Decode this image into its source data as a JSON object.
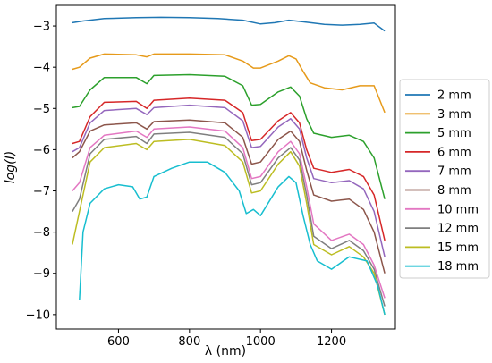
{
  "chart_data": {
    "type": "line",
    "title": "",
    "xlabel": "λ (nm)",
    "ylabel": "log(I)",
    "xlim": [
      425,
      1380
    ],
    "ylim": [
      -10.35,
      -2.5
    ],
    "xticks": [
      600,
      800,
      1000,
      1200
    ],
    "yticks": [
      -3,
      -4,
      -5,
      -6,
      -7,
      -8,
      -9,
      -10
    ],
    "xtick_labels": [
      "600",
      "800",
      "1000",
      "1200"
    ],
    "ytick_labels": [
      "−3",
      "−4",
      "−5",
      "−6",
      "−7",
      "−8",
      "−9",
      "−10"
    ],
    "grid": false,
    "legend_position": "right",
    "series": [
      {
        "name": "2 mm",
        "color": "#1f77b4",
        "x": [
          470,
          500,
          560,
          650,
          720,
          800,
          880,
          950,
          1000,
          1040,
          1080,
          1120,
          1180,
          1230,
          1280,
          1320,
          1350
        ],
        "y": [
          -2.92,
          -2.88,
          -2.82,
          -2.8,
          -2.79,
          -2.8,
          -2.82,
          -2.86,
          -2.95,
          -2.92,
          -2.86,
          -2.9,
          -2.96,
          -2.98,
          -2.96,
          -2.93,
          -3.12
        ]
      },
      {
        "name": "3 mm",
        "color": "#e69a1a",
        "x": [
          470,
          490,
          520,
          560,
          650,
          680,
          700,
          800,
          900,
          950,
          980,
          1000,
          1050,
          1080,
          1100,
          1120,
          1140,
          1180,
          1230,
          1280,
          1320,
          1350
        ],
        "y": [
          -4.05,
          -4.0,
          -3.78,
          -3.68,
          -3.7,
          -3.75,
          -3.68,
          -3.68,
          -3.7,
          -3.85,
          -4.02,
          -4.02,
          -3.85,
          -3.72,
          -3.8,
          -4.1,
          -4.38,
          -4.5,
          -4.55,
          -4.45,
          -4.45,
          -5.1
        ]
      },
      {
        "name": "5 mm",
        "color": "#2ca02c",
        "x": [
          470,
          490,
          520,
          560,
          650,
          680,
          700,
          800,
          900,
          950,
          975,
          1000,
          1050,
          1085,
          1110,
          1130,
          1150,
          1200,
          1250,
          1290,
          1320,
          1350
        ],
        "y": [
          -4.98,
          -4.95,
          -4.55,
          -4.25,
          -4.25,
          -4.4,
          -4.2,
          -4.18,
          -4.22,
          -4.45,
          -4.92,
          -4.9,
          -4.6,
          -4.48,
          -4.7,
          -5.25,
          -5.6,
          -5.7,
          -5.65,
          -5.8,
          -6.2,
          -7.2
        ]
      },
      {
        "name": "6 mm",
        "color": "#d62728",
        "x": [
          470,
          490,
          520,
          560,
          650,
          680,
          700,
          800,
          900,
          950,
          975,
          1000,
          1050,
          1085,
          1110,
          1130,
          1150,
          1200,
          1250,
          1290,
          1320,
          1350
        ],
        "y": [
          -5.85,
          -5.8,
          -5.2,
          -4.85,
          -4.83,
          -5.0,
          -4.8,
          -4.75,
          -4.8,
          -5.1,
          -5.78,
          -5.75,
          -5.3,
          -5.1,
          -5.35,
          -6.0,
          -6.45,
          -6.55,
          -6.48,
          -6.65,
          -7.1,
          -8.2
        ]
      },
      {
        "name": "7 mm",
        "color": "#9467bd",
        "x": [
          470,
          490,
          520,
          560,
          650,
          680,
          700,
          800,
          900,
          950,
          975,
          1000,
          1050,
          1085,
          1110,
          1130,
          1150,
          1200,
          1250,
          1290,
          1320,
          1350
        ],
        "y": [
          -6.05,
          -5.95,
          -5.35,
          -5.05,
          -5.0,
          -5.15,
          -4.98,
          -4.92,
          -4.98,
          -5.3,
          -5.95,
          -5.92,
          -5.45,
          -5.25,
          -5.5,
          -6.2,
          -6.7,
          -6.8,
          -6.75,
          -6.95,
          -7.5,
          -8.6
        ]
      },
      {
        "name": "8 mm",
        "color": "#8c564b",
        "x": [
          470,
          490,
          520,
          560,
          650,
          680,
          700,
          800,
          900,
          950,
          975,
          1000,
          1050,
          1085,
          1110,
          1130,
          1150,
          1200,
          1250,
          1290,
          1320,
          1350
        ],
        "y": [
          -6.2,
          -6.05,
          -5.55,
          -5.4,
          -5.35,
          -5.5,
          -5.32,
          -5.28,
          -5.35,
          -5.7,
          -6.35,
          -6.3,
          -5.75,
          -5.55,
          -5.8,
          -6.5,
          -7.1,
          -7.25,
          -7.2,
          -7.45,
          -8.0,
          -9.0
        ]
      },
      {
        "name": "10 mm",
        "color": "#e377c2",
        "x": [
          470,
          490,
          520,
          560,
          650,
          680,
          700,
          800,
          900,
          950,
          975,
          1000,
          1050,
          1085,
          1110,
          1130,
          1150,
          1200,
          1250,
          1290,
          1320,
          1350
        ],
        "y": [
          -7.0,
          -6.8,
          -5.95,
          -5.65,
          -5.55,
          -5.7,
          -5.5,
          -5.45,
          -5.55,
          -5.95,
          -6.7,
          -6.65,
          -6.05,
          -5.8,
          -6.1,
          -6.9,
          -7.8,
          -8.2,
          -8.05,
          -8.3,
          -8.8,
          -9.6
        ]
      },
      {
        "name": "12 mm",
        "color": "#7f7f7f",
        "x": [
          470,
          490,
          520,
          560,
          650,
          680,
          700,
          800,
          900,
          950,
          975,
          1000,
          1050,
          1085,
          1110,
          1130,
          1150,
          1200,
          1250,
          1290,
          1320,
          1350
        ],
        "y": [
          -7.5,
          -7.2,
          -6.1,
          -5.75,
          -5.68,
          -5.85,
          -5.62,
          -5.58,
          -5.7,
          -6.1,
          -6.85,
          -6.8,
          -6.2,
          -5.95,
          -6.25,
          -7.1,
          -8.1,
          -8.4,
          -8.2,
          -8.45,
          -8.9,
          -9.8
        ]
      },
      {
        "name": "15 mm",
        "color": "#bcbd22",
        "x": [
          470,
          490,
          520,
          560,
          650,
          680,
          700,
          800,
          900,
          950,
          975,
          1000,
          1050,
          1085,
          1110,
          1130,
          1150,
          1200,
          1250,
          1290,
          1320,
          1350
        ],
        "y": [
          -8.3,
          -7.5,
          -6.3,
          -5.95,
          -5.85,
          -6.0,
          -5.8,
          -5.75,
          -5.9,
          -6.3,
          -7.05,
          -7.0,
          -6.35,
          -6.05,
          -6.4,
          -7.3,
          -8.3,
          -8.55,
          -8.35,
          -8.6,
          -9.0,
          -10.0
        ]
      },
      {
        "name": "18 mm",
        "color": "#17becf",
        "x": [
          490,
          500,
          520,
          560,
          600,
          640,
          660,
          680,
          700,
          750,
          800,
          850,
          900,
          940,
          960,
          980,
          1000,
          1050,
          1080,
          1100,
          1120,
          1140,
          1160,
          1200,
          1250,
          1300,
          1330,
          1350
        ],
        "y": [
          -9.65,
          -8.0,
          -7.3,
          -6.95,
          -6.85,
          -6.9,
          -7.2,
          -7.15,
          -6.65,
          -6.45,
          -6.3,
          -6.3,
          -6.55,
          -7.0,
          -7.55,
          -7.45,
          -7.6,
          -6.9,
          -6.65,
          -6.8,
          -7.6,
          -8.3,
          -8.7,
          -8.9,
          -8.6,
          -8.7,
          -9.3,
          -10.0
        ]
      }
    ]
  }
}
